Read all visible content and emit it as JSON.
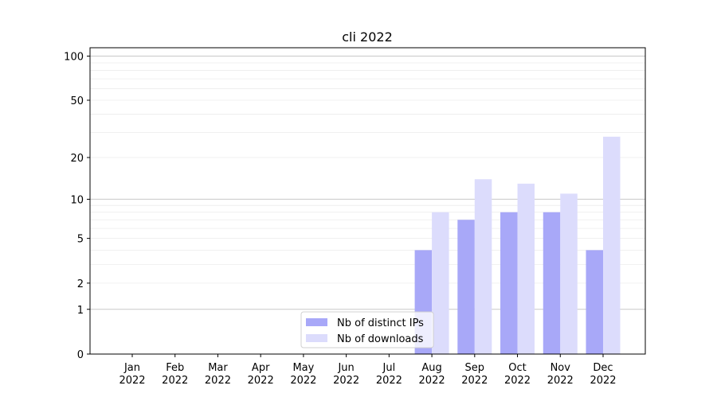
{
  "chart_data": {
    "type": "bar",
    "title": "cli 2022",
    "xlabel": "",
    "ylabel": "",
    "y_scale": "log(1+y)",
    "ylim": [
      0,
      114
    ],
    "yticks": [
      0,
      1,
      2,
      5,
      10,
      20,
      50,
      100
    ],
    "grid": true,
    "legend_placement": "lower-center",
    "categories": [
      "Jan\n2022",
      "Feb\n2022",
      "Mar\n2022",
      "Apr\n2022",
      "May\n2022",
      "Jun\n2022",
      "Jul\n2022",
      "Aug\n2022",
      "Sep\n2022",
      "Oct\n2022",
      "Nov\n2022",
      "Dec\n2022"
    ],
    "series": [
      {
        "name": "Nb of distinct IPs",
        "color": "#a8a8f8",
        "values": [
          0,
          0,
          0,
          0,
          0,
          0,
          0,
          4,
          7,
          8,
          8,
          4
        ]
      },
      {
        "name": "Nb of downloads",
        "color": "#dcdcfc",
        "values": [
          0,
          0,
          0,
          0,
          0,
          0,
          0,
          8,
          14,
          13,
          11,
          28
        ]
      }
    ]
  }
}
